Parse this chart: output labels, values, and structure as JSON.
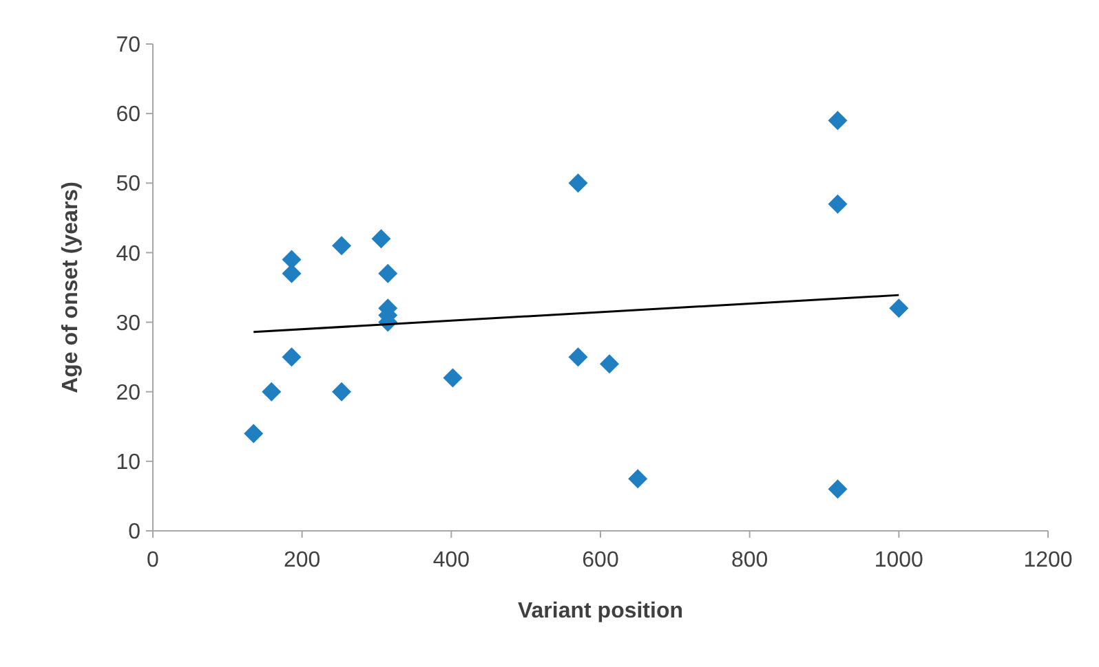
{
  "chart_data": {
    "type": "scatter",
    "xlabel": "Variant position",
    "ylabel": "Age of onset (years)",
    "xlim": [
      0,
      1200
    ],
    "xticks": [
      0,
      200,
      400,
      600,
      800,
      1000,
      1200
    ],
    "ylim": [
      0,
      70
    ],
    "yticks": [
      0,
      10,
      20,
      30,
      40,
      50,
      60,
      70
    ],
    "grid": false,
    "marker": "diamond",
    "series": [
      {
        "color": "#1f7fc0",
        "x": [
          135,
          159,
          186,
          186,
          186,
          253,
          253,
          306,
          315,
          315,
          315,
          315,
          402,
          570,
          570,
          612,
          650,
          918,
          918,
          918,
          1000
        ],
        "values": [
          14,
          20,
          39,
          37,
          25,
          41,
          20,
          42,
          37,
          32,
          31,
          30,
          22,
          50,
          25,
          24,
          7.5,
          59,
          47,
          6,
          32
        ]
      },
      {
        "type": "line",
        "color": "#000000",
        "line_style": "solid",
        "marker": "none",
        "x": [
          135,
          1000
        ],
        "values": [
          28.6,
          33.9
        ]
      }
    ]
  }
}
